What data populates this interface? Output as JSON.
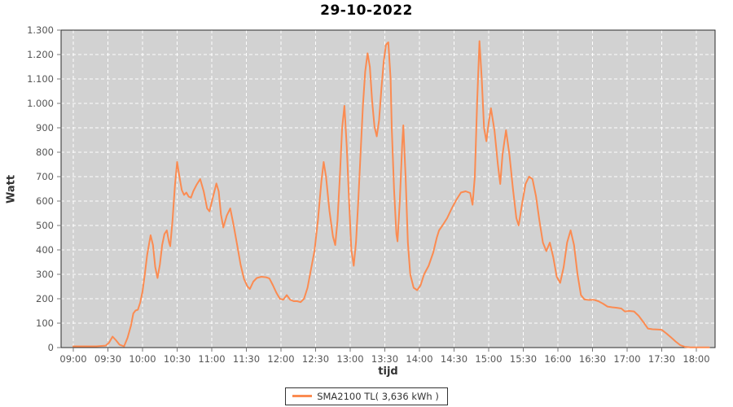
{
  "colors": {
    "series": "#fb8b51",
    "plot_bg": "#d2d2d2",
    "grid": "#ffffff",
    "plot_border": "#2b2b2b",
    "tick": "#777777",
    "axis_text": "#555555",
    "title_text": "#000000"
  },
  "legend": {
    "label": "SMA2100 TL( 3,636 kWh )"
  },
  "chart_data": {
    "type": "line",
    "title": "29-10-2022",
    "xlabel": "tijd",
    "ylabel": "Watt",
    "ylim": [
      0,
      1300
    ],
    "grid": true,
    "legend_position": "bottom-center",
    "x_ticks": [
      "09:00",
      "09:30",
      "10:00",
      "10:30",
      "11:00",
      "11:30",
      "12:00",
      "12:30",
      "13:00",
      "13:30",
      "14:00",
      "14:30",
      "15:00",
      "15:30",
      "16:00",
      "16:30",
      "17:00",
      "17:30",
      "18:00"
    ],
    "y_ticks": [
      {
        "v": 0,
        "label": "0"
      },
      {
        "v": 100,
        "label": "100"
      },
      {
        "v": 200,
        "label": "200"
      },
      {
        "v": 300,
        "label": "300"
      },
      {
        "v": 400,
        "label": "400"
      },
      {
        "v": 500,
        "label": "500"
      },
      {
        "v": 600,
        "label": "600"
      },
      {
        "v": 700,
        "label": "700"
      },
      {
        "v": 800,
        "label": "800"
      },
      {
        "v": 900,
        "label": "900"
      },
      {
        "v": 1000,
        "label": "1.000"
      },
      {
        "v": 1100,
        "label": "1.100"
      },
      {
        "v": 1200,
        "label": "1.200"
      },
      {
        "v": 1300,
        "label": "1.300"
      }
    ],
    "series": [
      {
        "name": "SMA2100 TL( 3,636 kWh )",
        "points": [
          [
            "09:00",
            5
          ],
          [
            "09:10",
            5
          ],
          [
            "09:20",
            5
          ],
          [
            "09:28",
            8
          ],
          [
            "09:31",
            20
          ],
          [
            "09:34",
            45
          ],
          [
            "09:37",
            30
          ],
          [
            "09:40",
            12
          ],
          [
            "09:44",
            5
          ],
          [
            "09:47",
            40
          ],
          [
            "09:50",
            90
          ],
          [
            "09:52",
            140
          ],
          [
            "09:54",
            152
          ],
          [
            "09:56",
            155
          ],
          [
            "09:58",
            185
          ],
          [
            "10:00",
            230
          ],
          [
            "10:02",
            300
          ],
          [
            "10:04",
            380
          ],
          [
            "10:07",
            460
          ],
          [
            "10:09",
            420
          ],
          [
            "10:11",
            330
          ],
          [
            "10:13",
            285
          ],
          [
            "10:15",
            340
          ],
          [
            "10:17",
            420
          ],
          [
            "10:19",
            465
          ],
          [
            "10:21",
            480
          ],
          [
            "10:23",
            430
          ],
          [
            "10:24",
            415
          ],
          [
            "10:26",
            520
          ],
          [
            "10:28",
            660
          ],
          [
            "10:30",
            760
          ],
          [
            "10:32",
            700
          ],
          [
            "10:34",
            645
          ],
          [
            "10:36",
            625
          ],
          [
            "10:38",
            635
          ],
          [
            "10:40",
            618
          ],
          [
            "10:42",
            614
          ],
          [
            "10:44",
            640
          ],
          [
            "10:47",
            668
          ],
          [
            "10:50",
            690
          ],
          [
            "10:53",
            640
          ],
          [
            "10:56",
            570
          ],
          [
            "10:58",
            558
          ],
          [
            "11:01",
            615
          ],
          [
            "11:04",
            672
          ],
          [
            "11:06",
            640
          ],
          [
            "11:08",
            545
          ],
          [
            "11:10",
            492
          ],
          [
            "11:13",
            540
          ],
          [
            "11:16",
            570
          ],
          [
            "11:19",
            500
          ],
          [
            "11:22",
            420
          ],
          [
            "11:25",
            340
          ],
          [
            "11:28",
            280
          ],
          [
            "11:31",
            250
          ],
          [
            "11:33",
            240
          ],
          [
            "11:36",
            270
          ],
          [
            "11:39",
            285
          ],
          [
            "11:43",
            290
          ],
          [
            "11:47",
            288
          ],
          [
            "11:50",
            283
          ],
          [
            "11:53",
            255
          ],
          [
            "11:56",
            225
          ],
          [
            "11:59",
            200
          ],
          [
            "12:02",
            196
          ],
          [
            "12:05",
            215
          ],
          [
            "12:08",
            196
          ],
          [
            "12:11",
            190
          ],
          [
            "12:14",
            190
          ],
          [
            "12:17",
            186
          ],
          [
            "12:20",
            200
          ],
          [
            "12:23",
            245
          ],
          [
            "12:26",
            320
          ],
          [
            "12:29",
            395
          ],
          [
            "12:32",
            520
          ],
          [
            "12:35",
            680
          ],
          [
            "12:37",
            760
          ],
          [
            "12:39",
            700
          ],
          [
            "12:42",
            560
          ],
          [
            "12:45",
            455
          ],
          [
            "12:47",
            420
          ],
          [
            "12:49",
            520
          ],
          [
            "12:51",
            700
          ],
          [
            "12:53",
            900
          ],
          [
            "12:55",
            990
          ],
          [
            "12:57",
            820
          ],
          [
            "12:59",
            600
          ],
          [
            "13:01",
            400
          ],
          [
            "13:03",
            335
          ],
          [
            "13:05",
            430
          ],
          [
            "13:07",
            600
          ],
          [
            "13:09",
            800
          ],
          [
            "13:11",
            990
          ],
          [
            "13:13",
            1130
          ],
          [
            "13:15",
            1205
          ],
          [
            "13:17",
            1150
          ],
          [
            "13:19",
            1010
          ],
          [
            "13:21",
            905
          ],
          [
            "13:23",
            865
          ],
          [
            "13:25",
            930
          ],
          [
            "13:27",
            1060
          ],
          [
            "13:29",
            1170
          ],
          [
            "13:31",
            1240
          ],
          [
            "13:33",
            1250
          ],
          [
            "13:35",
            1100
          ],
          [
            "13:36",
            900
          ],
          [
            "13:38",
            650
          ],
          [
            "13:40",
            465
          ],
          [
            "13:41",
            435
          ],
          [
            "13:43",
            600
          ],
          [
            "13:45",
            830
          ],
          [
            "13:46",
            910
          ],
          [
            "13:48",
            700
          ],
          [
            "13:50",
            430
          ],
          [
            "13:52",
            300
          ],
          [
            "13:55",
            245
          ],
          [
            "13:58",
            235
          ],
          [
            "14:01",
            255
          ],
          [
            "14:04",
            300
          ],
          [
            "14:08",
            335
          ],
          [
            "14:12",
            390
          ],
          [
            "14:15",
            450
          ],
          [
            "14:17",
            480
          ],
          [
            "14:20",
            500
          ],
          [
            "14:24",
            530
          ],
          [
            "14:28",
            570
          ],
          [
            "14:32",
            605
          ],
          [
            "14:36",
            635
          ],
          [
            "14:40",
            640
          ],
          [
            "14:44",
            633
          ],
          [
            "14:46",
            585
          ],
          [
            "14:48",
            700
          ],
          [
            "14:50",
            1000
          ],
          [
            "14:52",
            1255
          ],
          [
            "14:54",
            1100
          ],
          [
            "14:56",
            900
          ],
          [
            "14:58",
            845
          ],
          [
            "15:00",
            920
          ],
          [
            "15:02",
            980
          ],
          [
            "15:05",
            890
          ],
          [
            "15:08",
            750
          ],
          [
            "15:10",
            670
          ],
          [
            "15:12",
            790
          ],
          [
            "15:15",
            890
          ],
          [
            "15:18",
            790
          ],
          [
            "15:21",
            650
          ],
          [
            "15:24",
            530
          ],
          [
            "15:26",
            500
          ],
          [
            "15:29",
            590
          ],
          [
            "15:32",
            670
          ],
          [
            "15:35",
            700
          ],
          [
            "15:38",
            690
          ],
          [
            "15:41",
            620
          ],
          [
            "15:44",
            520
          ],
          [
            "15:47",
            430
          ],
          [
            "15:50",
            395
          ],
          [
            "15:53",
            430
          ],
          [
            "15:56",
            370
          ],
          [
            "15:59",
            290
          ],
          [
            "16:02",
            265
          ],
          [
            "16:05",
            330
          ],
          [
            "16:08",
            430
          ],
          [
            "16:11",
            480
          ],
          [
            "16:14",
            420
          ],
          [
            "16:17",
            300
          ],
          [
            "16:20",
            215
          ],
          [
            "16:23",
            197
          ],
          [
            "16:27",
            195
          ],
          [
            "16:31",
            196
          ],
          [
            "16:35",
            190
          ],
          [
            "16:39",
            180
          ],
          [
            "16:43",
            168
          ],
          [
            "16:47",
            165
          ],
          [
            "16:51",
            163
          ],
          [
            "16:55",
            160
          ],
          [
            "16:58",
            148
          ],
          [
            "17:02",
            150
          ],
          [
            "17:06",
            148
          ],
          [
            "17:10",
            130
          ],
          [
            "17:14",
            105
          ],
          [
            "17:18",
            78
          ],
          [
            "17:22",
            75
          ],
          [
            "17:26",
            74
          ],
          [
            "17:30",
            73
          ],
          [
            "17:34",
            58
          ],
          [
            "17:38",
            42
          ],
          [
            "17:42",
            25
          ],
          [
            "17:46",
            10
          ],
          [
            "17:50",
            3
          ],
          [
            "17:55",
            1
          ],
          [
            "18:00",
            1
          ],
          [
            "18:06",
            1
          ],
          [
            "18:11",
            1
          ]
        ]
      }
    ]
  }
}
